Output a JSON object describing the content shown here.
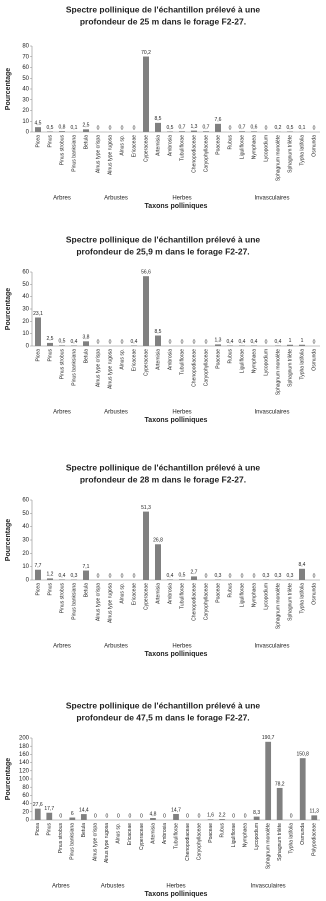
{
  "chart_data": [
    {
      "type": "bar",
      "title": [
        "Spectre pollinique de l'échantillon prélevé à une",
        "profondeur de 25 m dans le forage F2-27."
      ],
      "ylabel": "Pourcentage",
      "xlabel": "Taxons polliniques",
      "groups": [
        "Arbres",
        "Arbustes",
        "Herbes",
        "Invasculaires"
      ],
      "color": "#808080",
      "categories": [
        "Picea",
        "Pinus",
        "Pinus strobus",
        "Pinus banksiana",
        "Betula",
        "Alnus type crispa",
        "Alnus type rugosa",
        "Alnus sp.",
        "Ericaceae",
        "Cyperaceae",
        "Artemisia",
        "Ambrosia",
        "Tubuliflorae",
        "Chenopodiaceae",
        "Caryophyllaceae",
        "Poaceae",
        "Rubus",
        "Liguliflorae",
        "Nymphaea",
        "Lycopodium",
        "Sphagnum monolète",
        "Sphagnum trilète",
        "Typha latifolia",
        "Osmunda"
      ],
      "values": [
        4.5,
        0.5,
        0.8,
        0.1,
        2.5,
        0,
        0,
        0,
        0,
        70.2,
        8.5,
        0.5,
        0.7,
        1.3,
        0.7,
        7.6,
        0,
        0.7,
        0.6,
        0,
        0.2,
        0.5,
        0.1,
        0
      ],
      "value_labels": [
        "4,5",
        "0,5",
        "0,8",
        "0,1",
        "2,5",
        "0",
        "0",
        "0",
        "0",
        "70,2",
        "8,5",
        "0,5",
        "0,7",
        "1,3",
        "0,7",
        "7,6",
        "0",
        "0,7",
        "0,6",
        "0",
        "0,2",
        "0,5",
        "0,1",
        "0"
      ],
      "ylim": [
        0,
        80
      ],
      "yticks": [
        0,
        10,
        20,
        30,
        40,
        50,
        60,
        70,
        80
      ]
    },
    {
      "type": "bar",
      "title": [
        "Spectre pollinique de l'échantillon prélevé à une",
        "profondeur de 25,9 m dans le forage F2-27."
      ],
      "ylabel": "Pourcentage",
      "xlabel": "Taxons polliniques",
      "groups": [
        "Arbres",
        "Arbustes",
        "Herbes",
        "Invasculaires"
      ],
      "color": "#808080",
      "categories": [
        "Picea",
        "Pinus",
        "Pinus strobus",
        "Pinus banksiana",
        "Betula",
        "Alnus type crispa",
        "Alnus type rugosa",
        "Alnus sp.",
        "Ericaceae",
        "Cyperaceae",
        "Artemisia",
        "Ambrosia",
        "Tubuliflorae",
        "Chenopodiaceae",
        "Caryophyllaceae",
        "Poaceae",
        "Rubus",
        "Liguliflorae",
        "Nymphaea",
        "Lycopodium",
        "Sphagnum monolète",
        "Sphagnum trilète",
        "Typha latifolia",
        "Osmunda"
      ],
      "values": [
        23.1,
        2.5,
        0.5,
        0.4,
        3.8,
        0,
        0,
        0,
        0.4,
        56.6,
        8.5,
        0,
        0,
        0,
        0,
        1.3,
        0.4,
        0.4,
        0.4,
        0,
        0.4,
        1,
        1,
        0
      ],
      "value_labels": [
        "23,1",
        "2,5",
        "0,5",
        "0,4",
        "3,8",
        "0",
        "0",
        "0",
        "0,4",
        "56,6",
        "8,5",
        "0",
        "0",
        "0",
        "0",
        "1,3",
        "0,4",
        "0,4",
        "0,4",
        "0",
        "0,4",
        "1",
        "1",
        "0"
      ],
      "ylim": [
        0,
        60
      ],
      "yticks": [
        0,
        10,
        20,
        30,
        40,
        50,
        60
      ]
    },
    {
      "type": "bar",
      "title": [
        "Spectre pollinique de l'échantillon prélevé à une",
        "profondeur de 28 m dans le forage F2-27."
      ],
      "ylabel": "Pourcentage",
      "xlabel": "Taxons polliniques",
      "groups": [
        "Arbres",
        "Arbustes",
        "Herbes",
        "Invasculaires"
      ],
      "color": "#808080",
      "categories": [
        "Picea",
        "Pinus",
        "Pinus strobus",
        "Pinus banksiana",
        "Betula",
        "Alnus type crispa",
        "Alnus type rugosa",
        "Alnus sp.",
        "Ericaceae",
        "Cyperaceae",
        "Artemisia",
        "Ambrosia",
        "Tubuliflorae",
        "Chenopodiaceae",
        "Caryophyllaceae",
        "Poaceae",
        "Rubus",
        "Liguliflorae",
        "Nymphaea",
        "Lycopodium",
        "Sphagnum monolète",
        "Sphagnum trilète",
        "Typha latifolia",
        "Osmunda"
      ],
      "values": [
        7.7,
        1.2,
        0.4,
        0.3,
        7.1,
        0,
        0,
        0,
        0,
        51.3,
        26.8,
        0.4,
        0.5,
        2.7,
        0,
        0.3,
        0,
        0,
        0,
        0.3,
        0.3,
        0.3,
        8.4,
        0
      ],
      "value_labels": [
        "7,7",
        "1,2",
        "0,4",
        "0,3",
        "7,1",
        "0",
        "0",
        "0",
        "0",
        "51,3",
        "26,8",
        "0,4",
        "0,5",
        "2,7",
        "0",
        "0,3",
        "0",
        "0",
        "0",
        "0,3",
        "0,3",
        "0,3",
        "8,4",
        "0"
      ],
      "ylim": [
        0,
        60
      ],
      "yticks": [
        0,
        10,
        20,
        30,
        40,
        50,
        60
      ]
    },
    {
      "type": "bar",
      "title": [
        "Spectre pollinique de l'échantillon prélevé à une",
        "profondeur de 47,5 m dans le forage F2-27."
      ],
      "ylabel": "Pourcentage",
      "xlabel": "Taxons polliniques",
      "groups": [
        "Arbres",
        "Arbustes",
        "Herbes",
        "Invasculaires"
      ],
      "color": "#808080",
      "categories": [
        "Picea",
        "Pinus",
        "Pinus strobus",
        "Pinus banksiana",
        "Betula",
        "Alnus type crispa",
        "Alnus type rugosa",
        "Alnus sp.",
        "Ericaceae",
        "Cyperaceae",
        "Artemisia",
        "Ambrosia",
        "Tubuliflorae",
        "Chenopodiaceae",
        "Caryophyllaceae",
        "Poaceae",
        "Rubus",
        "Liguliflorae",
        "Nymphaea",
        "Lycopodium",
        "Sphagnum monolète",
        "Sphagnum trilète",
        "Typha latifolia",
        "Osmunda",
        "Polypodiaceae"
      ],
      "values": [
        27.6,
        17.7,
        0,
        6,
        14.4,
        0,
        0,
        0,
        0,
        0,
        4.8,
        0,
        14.7,
        0,
        0,
        1.6,
        2.2,
        0,
        0,
        8.3,
        190.7,
        78.2,
        0,
        150.8,
        11.3
      ],
      "value_labels": [
        "27,6",
        "17,7",
        "0",
        "6",
        "14,4",
        "0",
        "0",
        "0",
        "0",
        "0",
        "4,8",
        "0",
        "14,7",
        "0",
        "0",
        "1,6",
        "2,2",
        "0",
        "0",
        "8,3",
        "190,7",
        "78,2",
        "0",
        "150,8",
        "11,3"
      ],
      "ylim": [
        0,
        200
      ],
      "yticks": [
        0,
        20,
        40,
        60,
        80,
        100,
        120,
        140,
        160,
        180,
        200
      ]
    }
  ]
}
